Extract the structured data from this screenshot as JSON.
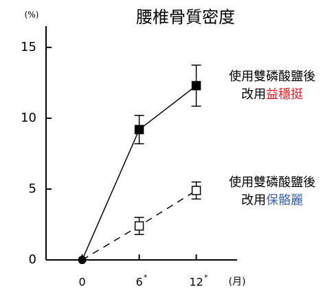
{
  "chart_data": {
    "type": "line",
    "title": "腰椎骨質密度",
    "y_unit": "(%)",
    "x_unit": "(月)",
    "x": [
      0,
      6,
      12
    ],
    "series": [
      {
        "name": "益穩挺",
        "label_lines": [
          "使用雙磷酸鹽後",
          "改用"
        ],
        "name_color": "#e8141c",
        "color": "#000000",
        "line_style": "solid",
        "marker": "filled-square",
        "values": [
          0,
          9.2,
          12.3
        ],
        "errors": [
          null,
          1.0,
          1.45
        ]
      },
      {
        "name": "保骼麗",
        "label_lines": [
          "使用雙磷酸鹽後",
          "改用"
        ],
        "name_color": "#3c64b4",
        "color": "#000000",
        "line_style": "dashed",
        "marker": "open-square",
        "values": [
          0,
          2.4,
          4.9
        ],
        "errors": [
          null,
          0.6,
          0.6
        ]
      }
    ],
    "xlim": [
      -3.8,
      16.3
    ],
    "xticks": [
      0,
      {
        "value": 6,
        "label": "6",
        "superscript": "*"
      },
      {
        "value": 12,
        "label": "12",
        "superscript": "*"
      }
    ],
    "ylim": [
      0,
      16.5
    ],
    "yticks": [
      0,
      5,
      10,
      15
    ]
  }
}
